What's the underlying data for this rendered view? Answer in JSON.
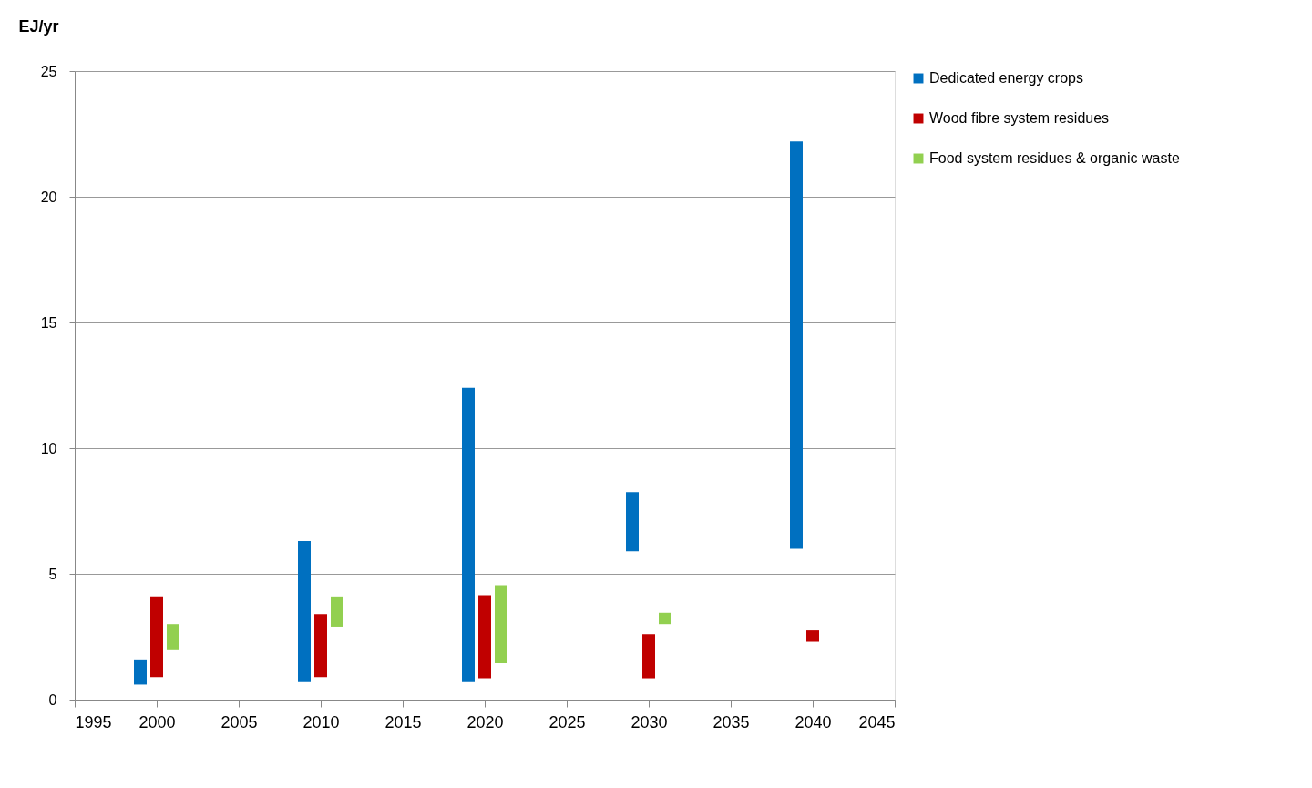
{
  "chart_data": {
    "type": "bar",
    "ylabel": "EJ/yr",
    "xlim": [
      1995,
      2045
    ],
    "xticks": [
      1995,
      2000,
      2005,
      2010,
      2015,
      2020,
      2025,
      2030,
      2035,
      2040,
      2045
    ],
    "ylim": [
      0,
      25
    ],
    "yticks": [
      0,
      5,
      10,
      15,
      20,
      25
    ],
    "grid": "y",
    "legend": "right",
    "series": [
      {
        "name": "Dedicated energy crops",
        "color": "#0070c0",
        "x": [
          1999,
          2009,
          2019,
          2029,
          2039
        ],
        "base": [
          0.6,
          0.7,
          0.7,
          5.9,
          6.0
        ],
        "values": [
          1.0,
          5.6,
          11.7,
          2.35,
          16.2
        ]
      },
      {
        "name": "Wood fibre system residues",
        "color": "#c00000",
        "x": [
          2000,
          2010,
          2020,
          2030,
          2040
        ],
        "base": [
          0.9,
          0.9,
          0.85,
          0.85,
          2.3
        ],
        "values": [
          3.2,
          2.5,
          3.3,
          1.75,
          0.45
        ]
      },
      {
        "name": "Food system residues & organic waste",
        "color": "#92d050",
        "x": [
          2001,
          2011,
          2021,
          2031
        ],
        "base": [
          2.0,
          2.9,
          1.45,
          3.0
        ],
        "values": [
          1.0,
          1.2,
          3.1,
          0.45
        ]
      }
    ]
  }
}
